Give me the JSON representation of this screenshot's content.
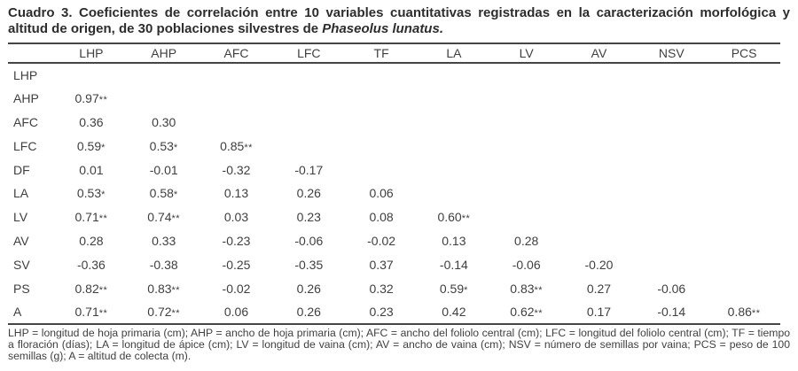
{
  "title": {
    "text": "Cuadro 3. Coeficientes de correlación entre 10 variables cuantitativas registradas en la caracterización morfológica y altitud de origen, de 30 poblaciones silvestres de ",
    "species": "Phaseolus lunatus."
  },
  "table": {
    "column_headers": [
      "LHP",
      "AHP",
      "AFC",
      "LFC",
      "TF",
      "LA",
      "LV",
      "AV",
      "NSV",
      "PCS"
    ],
    "rows": [
      {
        "label": "LHP",
        "values": []
      },
      {
        "label": "AHP",
        "values": [
          "0.97**"
        ]
      },
      {
        "label": "AFC",
        "values": [
          "0.36",
          "0.30"
        ]
      },
      {
        "label": "LFC",
        "values": [
          "0.59*",
          "0.53*",
          "0.85**"
        ]
      },
      {
        "label": "DF",
        "values": [
          "0.01",
          "-0.01",
          "-0.32",
          "-0.17"
        ]
      },
      {
        "label": "LA",
        "values": [
          "0.53*",
          "0.58*",
          "0.13",
          "0.26",
          "0.06"
        ]
      },
      {
        "label": "LV",
        "values": [
          "0.71**",
          "0.74**",
          "0.03",
          "0.23",
          "0.08",
          "0.60**"
        ]
      },
      {
        "label": "AV",
        "values": [
          "0.28",
          "0.33",
          "-0.23",
          "-0.06",
          "-0.02",
          "0.13",
          "0.28"
        ]
      },
      {
        "label": "SV",
        "values": [
          "-0.36",
          "-0.38",
          "-0.25",
          "-0.35",
          "0.37",
          "-0.14",
          "-0.06",
          "-0.20"
        ]
      },
      {
        "label": "PS",
        "values": [
          "0.82**",
          "0.83**",
          "-0.02",
          "0.26",
          "0.32",
          "0.59*",
          "0.83**",
          "0.27",
          "-0.06"
        ]
      },
      {
        "label": "A",
        "values": [
          "0.71**",
          "0.72**",
          "0.06",
          "0.26",
          "0.23",
          "0.42",
          "0.62**",
          "0.17",
          "-0.14",
          "0.86**"
        ]
      }
    ]
  },
  "footnote": {
    "text": "LHP = longitud de hoja primaria (cm); AHP = ancho de hoja primaria (cm); AFC = ancho del foliolo central (cm); LFC = longitud del foliolo central (cm); TF = tiempo a floración (días); LA = longitud de ápice (cm); LV = longitud de vaina (cm); AV = ancho de vaina (cm); NSV = número de semillas por vaina; PCS = peso de 100 semillas (g); A = altitud de colecta (m)."
  },
  "colors": {
    "title": "#2d2d2d",
    "text": "#3f3f3f",
    "rule": "#454545",
    "bg": "#ffffff"
  }
}
